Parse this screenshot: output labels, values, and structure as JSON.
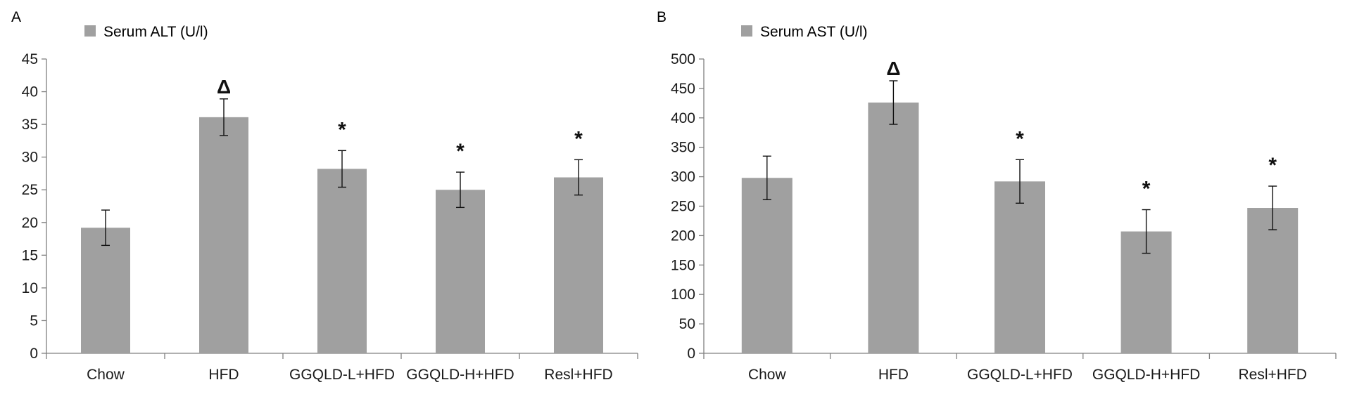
{
  "colors": {
    "bar": "#a0a0a0",
    "axis": "#808080",
    "text": "#1a1a1a",
    "marker": "#111111"
  },
  "chart_data": [
    {
      "panel_label": "A",
      "type": "bar",
      "legend": "Serum ALT (U/l)",
      "legend_position": "top-left",
      "categories": [
        "Chow",
        "HFD",
        "GGQLD-L+HFD",
        "GGQLD-H+HFD",
        "Resl+HFD"
      ],
      "series": [
        {
          "name": "Serum ALT (U/l)",
          "values": [
            19.2,
            36.1,
            28.2,
            25.0,
            26.9
          ],
          "error": [
            2.7,
            2.8,
            2.8,
            2.7,
            2.7
          ]
        }
      ],
      "markers": [
        "",
        "Δ",
        "*",
        "*",
        "*"
      ],
      "ylim": [
        0,
        45
      ],
      "yticks": [
        0,
        5,
        10,
        15,
        20,
        25,
        30,
        35,
        40,
        45
      ],
      "grid": false
    },
    {
      "panel_label": "B",
      "type": "bar",
      "legend": "Serum AST (U/l)",
      "legend_position": "top-left",
      "categories": [
        "Chow",
        "HFD",
        "GGQLD-L+HFD",
        "GGQLD-H+HFD",
        "Resl+HFD"
      ],
      "series": [
        {
          "name": "Serum AST (U/l)",
          "values": [
            298,
            426,
            292,
            207,
            247
          ],
          "error": [
            37,
            37,
            37,
            37,
            37
          ]
        }
      ],
      "markers": [
        "",
        "Δ",
        "*",
        "*",
        "*"
      ],
      "ylim": [
        0,
        500
      ],
      "yticks": [
        0,
        50,
        100,
        150,
        200,
        250,
        300,
        350,
        400,
        450,
        500
      ],
      "grid": false
    }
  ]
}
